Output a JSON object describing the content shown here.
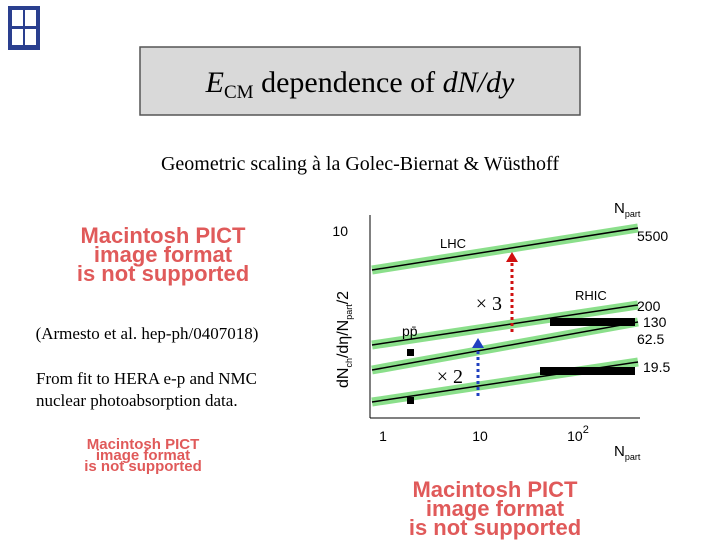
{
  "header": {
    "title": {
      "main": "E",
      "sub": "CM",
      "middle": " dependence of ",
      "italic": "dN/dy"
    },
    "subtitle": "Geometric scaling à la Golec-Biernat & Wüsthoff"
  },
  "placeholders": [
    [
      "Macintosh PICT",
      "image format",
      "is not supported"
    ],
    [
      "Macintosh PICT",
      "image format",
      "is not supported"
    ],
    [
      "Macintosh PICT",
      "image format",
      "is not supported"
    ]
  ],
  "notes": {
    "citation": "(Armesto et al. hep-ph/0407018)",
    "description": [
      "From fit to HERA e-p and NMC",
      "nuclear photoabsorption data."
    ]
  },
  "plot": {
    "y_label": "dN",
    "y_label_sub": "ch",
    "y_label_rest": "/dη/N",
    "y_label_sub2": "part",
    "y_label_end": "/2",
    "x_title": "N",
    "x_title_sub": "part",
    "top_title": "N",
    "top_title_sub": "part",
    "y_tick": "10",
    "x_ticks": [
      "1",
      "10",
      "10"
    ],
    "x_tick_exp": "2",
    "labels": {
      "lhc": "LHC",
      "rhic": "RHIC",
      "ppbar": "pp̄"
    },
    "energies": [
      "5500",
      "200",
      "130",
      "62.5",
      "19.5"
    ],
    "factors": [
      "× 3",
      "× 2"
    ]
  }
}
